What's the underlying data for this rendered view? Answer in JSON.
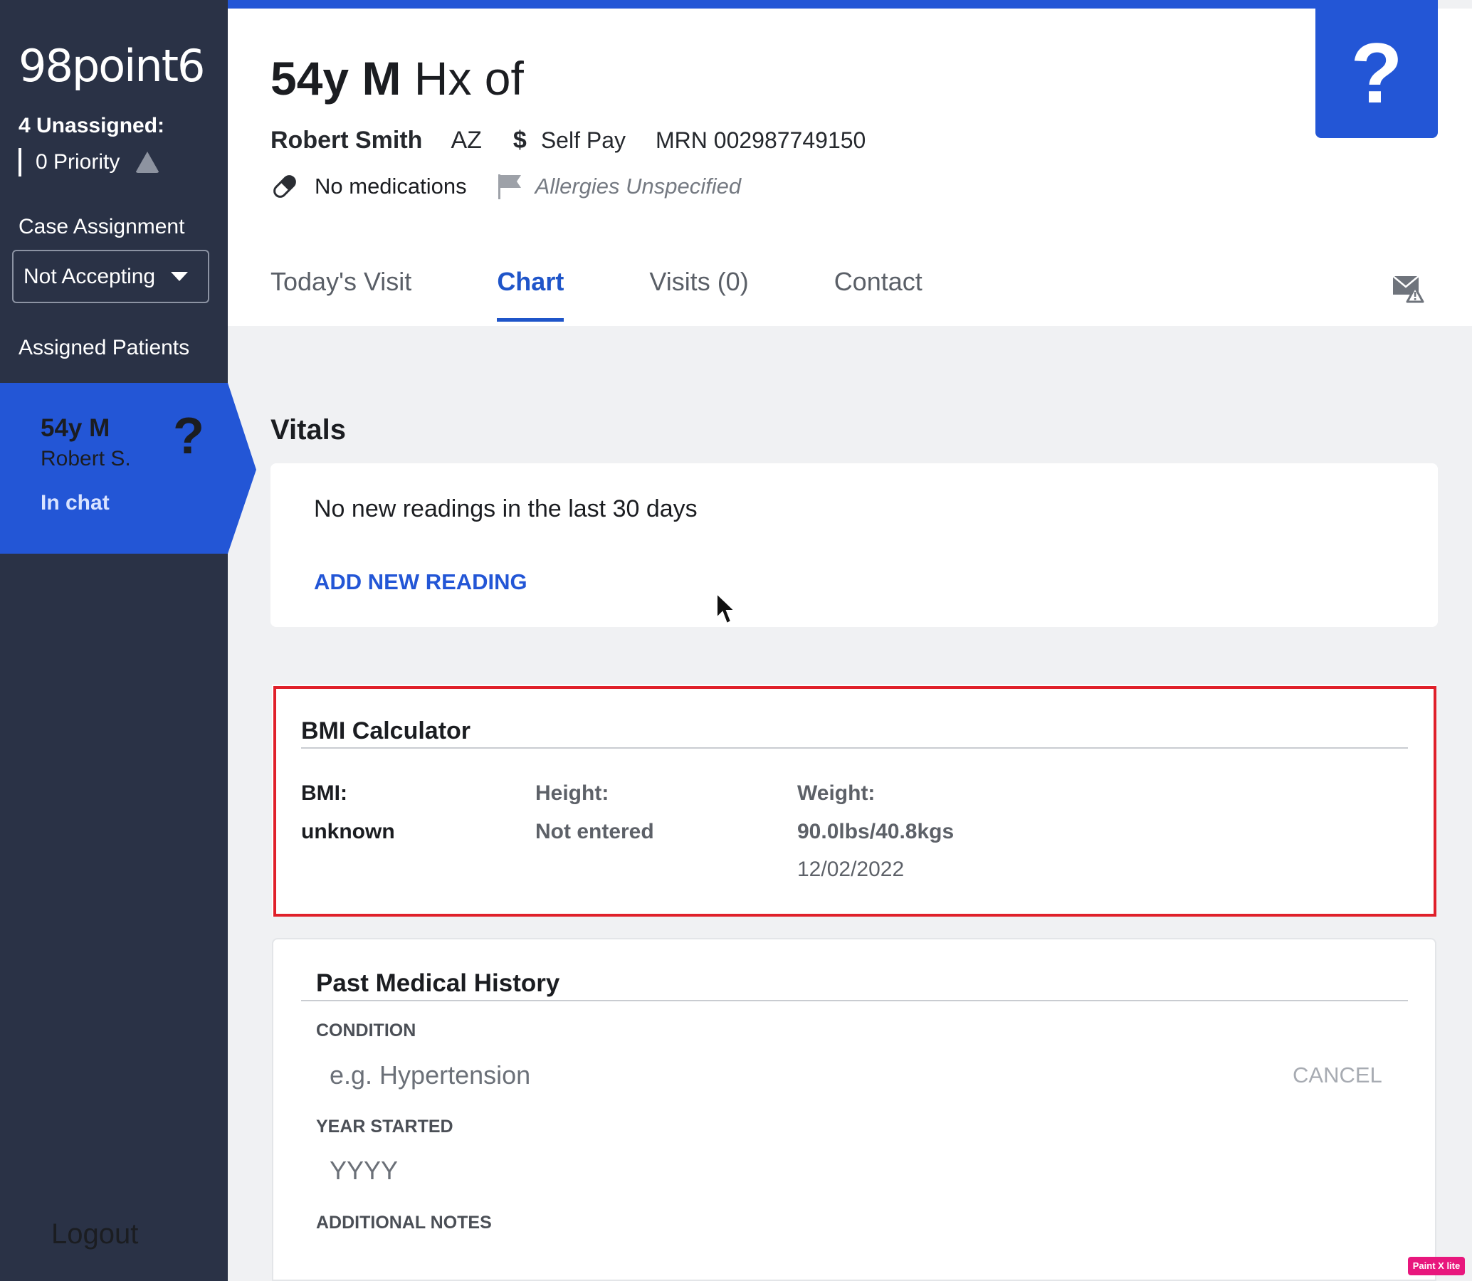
{
  "sidebar": {
    "logo": "98point6",
    "unassigned": "4 Unassigned:",
    "priority": "0 Priority",
    "case_assignment_label": "Case Assignment",
    "case_assignment_value": "Not Accepting",
    "assigned_patients_label": "Assigned Patients",
    "patient": {
      "age_sex": "54y M",
      "name": "Robert S.",
      "status": "In chat",
      "badge": "?"
    },
    "logout": "Logout"
  },
  "header": {
    "title_bold": "54y M",
    "title_rest": "Hx of",
    "patient_name": "Robert Smith",
    "state": "AZ",
    "dollar": "$",
    "payment": "Self Pay",
    "mrn": "MRN 002987749150",
    "medications": "No medications",
    "allergies": "Allergies Unspecified",
    "help": "?"
  },
  "tabs": [
    {
      "label": "Today's Visit",
      "active": false
    },
    {
      "label": "Chart",
      "active": true
    },
    {
      "label": "Visits (0)",
      "active": false
    },
    {
      "label": "Contact",
      "active": false
    }
  ],
  "vitals": {
    "title": "Vitals",
    "message": "No new readings in the last 30 days",
    "add_button": "ADD NEW READING"
  },
  "bmi": {
    "title": "BMI Calculator",
    "bmi_label": "BMI:",
    "bmi_value": "unknown",
    "height_label": "Height:",
    "height_value": "Not entered",
    "weight_label": "Weight:",
    "weight_value": "90.0lbs/40.8kgs",
    "weight_date": "12/02/2022"
  },
  "pmh": {
    "title": "Past Medical History",
    "condition_label": "CONDITION",
    "condition_placeholder": "e.g. Hypertension",
    "cancel": "CANCEL",
    "year_label": "YEAR STARTED",
    "year_placeholder": "YYYY",
    "notes_label": "ADDITIONAL NOTES"
  },
  "watermark": "Paint X lite",
  "colors": {
    "brand_blue": "#2356d6",
    "sidebar": "#2a3246",
    "highlight_red": "#e0202a"
  }
}
